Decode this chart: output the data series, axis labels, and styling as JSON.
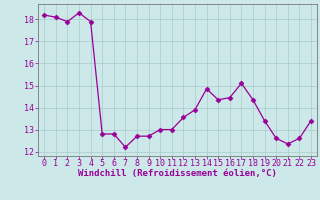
{
  "x": [
    0,
    1,
    2,
    3,
    4,
    5,
    6,
    7,
    8,
    9,
    10,
    11,
    12,
    13,
    14,
    15,
    16,
    17,
    18,
    19,
    20,
    21,
    22,
    23
  ],
  "y": [
    18.2,
    18.1,
    17.9,
    18.3,
    17.9,
    12.8,
    12.8,
    12.2,
    12.7,
    12.7,
    13.0,
    13.0,
    13.55,
    13.9,
    14.85,
    14.35,
    14.45,
    15.1,
    14.35,
    13.4,
    12.6,
    12.35,
    12.6,
    13.4
  ],
  "line_color": "#990099",
  "marker": "D",
  "marker_size": 2.5,
  "bg_color": "#cce8e8",
  "grid_color": "#aacccc",
  "xlabel": "Windchill (Refroidissement éolien,°C)",
  "xlabel_color": "#990099",
  "tick_color": "#990099",
  "ylim": [
    11.8,
    18.7
  ],
  "xlim": [
    -0.5,
    23.5
  ],
  "yticks": [
    12,
    13,
    14,
    15,
    16,
    17,
    18
  ],
  "xticks": [
    0,
    1,
    2,
    3,
    4,
    5,
    6,
    7,
    8,
    9,
    10,
    11,
    12,
    13,
    14,
    15,
    16,
    17,
    18,
    19,
    20,
    21,
    22,
    23
  ],
  "label_fontsize": 6.5,
  "tick_fontsize": 6.0
}
